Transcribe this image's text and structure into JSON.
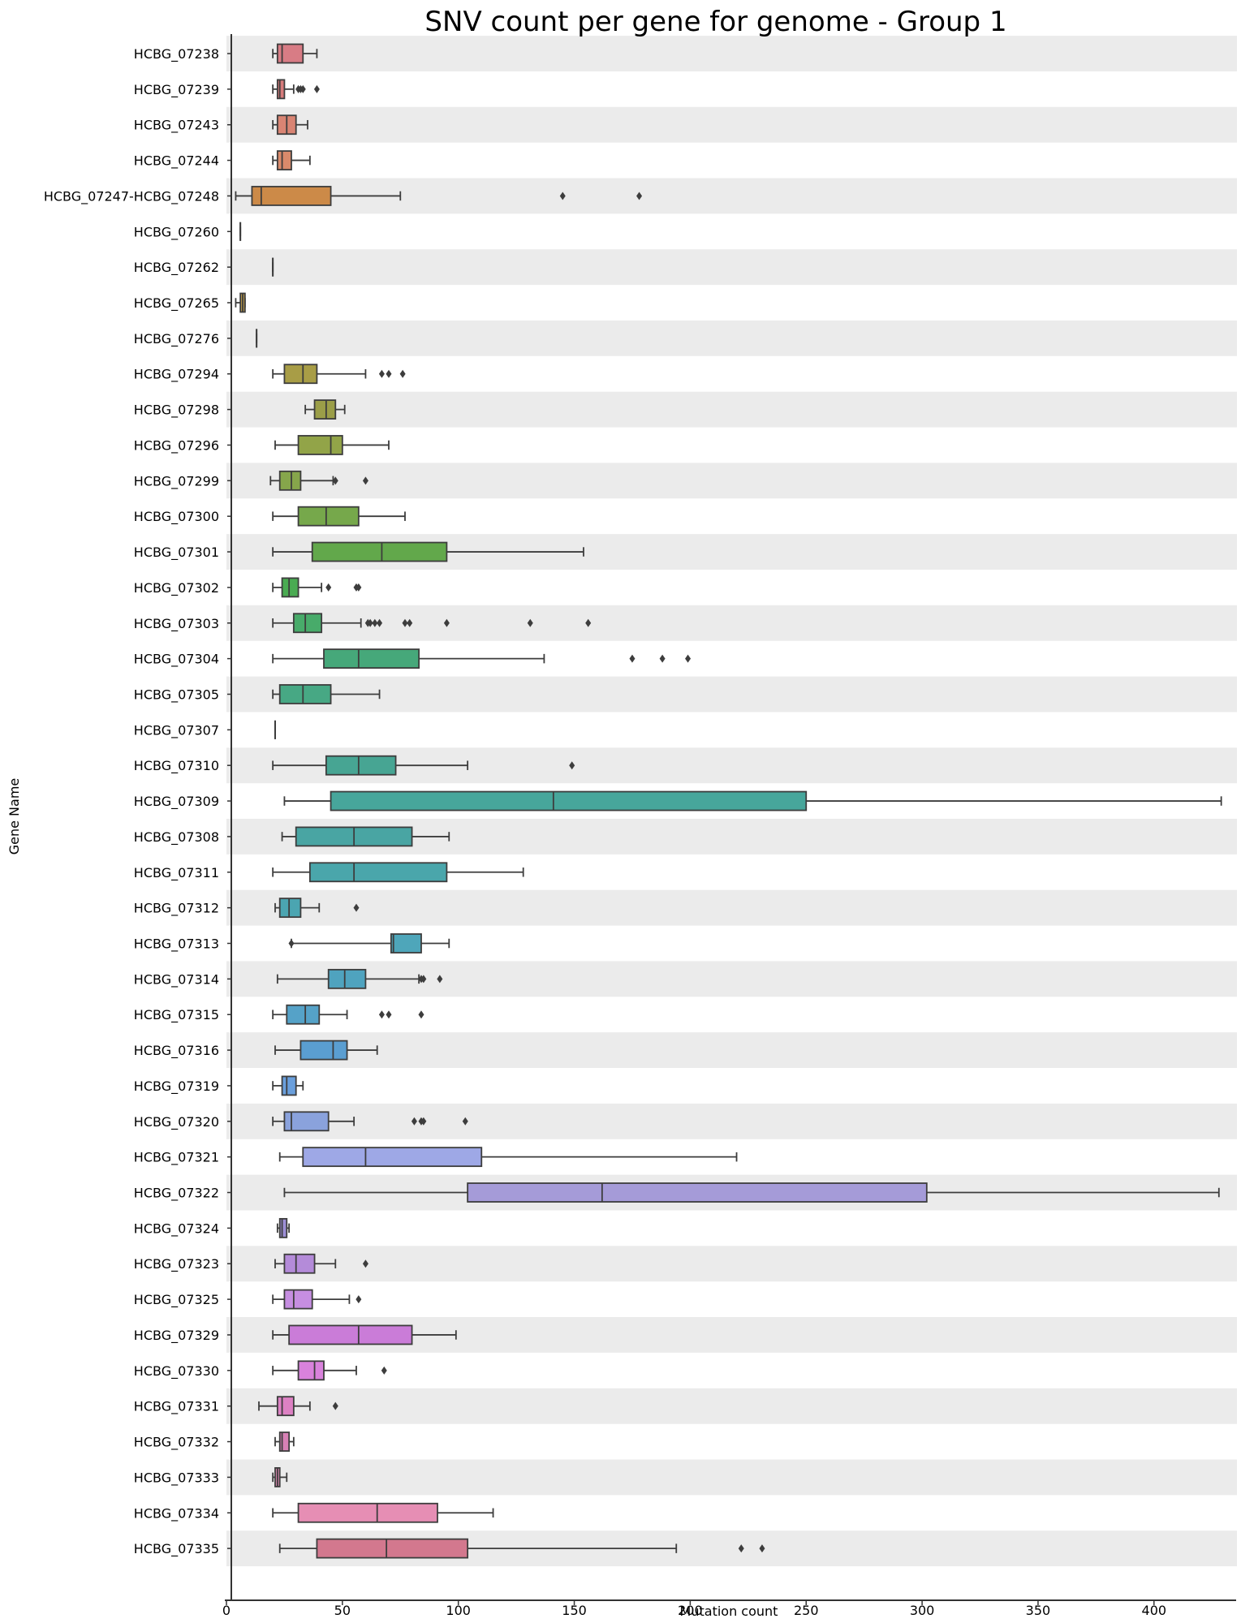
{
  "chart_data": {
    "type": "boxplot",
    "orientation": "horizontal",
    "title": "SNV count per gene for genome - Group 1",
    "xlabel": "Mutation count",
    "ylabel": "Gene Name",
    "xlim": [
      0,
      432
    ],
    "xticks": [
      0,
      50,
      100,
      150,
      200,
      250,
      300,
      350,
      400
    ],
    "grid": false,
    "band_color": "#ebebeb",
    "categories": [
      "HCBG_07238",
      "HCBG_07239",
      "HCBG_07243",
      "HCBG_07244",
      "HCBG_07247-HCBG_07248",
      "HCBG_07260",
      "HCBG_07262",
      "HCBG_07265",
      "HCBG_07276",
      "HCBG_07294",
      "HCBG_07298",
      "HCBG_07296",
      "HCBG_07299",
      "HCBG_07300",
      "HCBG_07301",
      "HCBG_07302",
      "HCBG_07303",
      "HCBG_07304",
      "HCBG_07305",
      "HCBG_07307",
      "HCBG_07310",
      "HCBG_07309",
      "HCBG_07308",
      "HCBG_07311",
      "HCBG_07312",
      "HCBG_07313",
      "HCBG_07314",
      "HCBG_07315",
      "HCBG_07316",
      "HCBG_07319",
      "HCBG_07320",
      "HCBG_07321",
      "HCBG_07322",
      "HCBG_07324",
      "HCBG_07323",
      "HCBG_07325",
      "HCBG_07329",
      "HCBG_07330",
      "HCBG_07331",
      "HCBG_07332",
      "HCBG_07333",
      "HCBG_07334",
      "HCBG_07335"
    ],
    "boxes": [
      {
        "min": 20,
        "q1": 22,
        "median": 24,
        "q3": 33,
        "max": 39,
        "outliers": [],
        "color": "#d87c85"
      },
      {
        "min": 20,
        "q1": 22,
        "median": 23,
        "q3": 25,
        "max": 29,
        "outliers": [
          31,
          32,
          33,
          39
        ],
        "color": "#d87c7c"
      },
      {
        "min": 20,
        "q1": 22,
        "median": 26,
        "q3": 30,
        "max": 35,
        "outliers": [],
        "color": "#d98473"
      },
      {
        "min": 20,
        "q1": 22,
        "median": 24,
        "q3": 28,
        "max": 36,
        "outliers": [],
        "color": "#d98a6b"
      },
      {
        "min": 4,
        "q1": 11,
        "median": 15,
        "q3": 45,
        "max": 75,
        "outliers": [
          145,
          178
        ],
        "color": "#cc8a48"
      },
      {
        "min": 6,
        "q1": 6,
        "median": 6,
        "q3": 6,
        "max": 6,
        "outliers": [],
        "color": "#c79145"
      },
      {
        "min": 20,
        "q1": 20,
        "median": 20,
        "q3": 20,
        "max": 20,
        "outliers": [],
        "color": "#bf9445"
      },
      {
        "min": 4,
        "q1": 6,
        "median": 7,
        "q3": 8,
        "max": 8,
        "outliers": [],
        "color": "#b8974a"
      },
      {
        "min": 13,
        "q1": 13,
        "median": 13,
        "q3": 13,
        "max": 13,
        "outliers": [],
        "color": "#b09a46"
      },
      {
        "min": 20,
        "q1": 25,
        "median": 33,
        "q3": 39,
        "max": 60,
        "outliers": [
          67,
          70,
          76
        ],
        "color": "#a89d46"
      },
      {
        "min": 34,
        "q1": 38,
        "median": 43,
        "q3": 47,
        "max": 51,
        "outliers": [],
        "color": "#9b9e48"
      },
      {
        "min": 21,
        "q1": 31,
        "median": 45,
        "q3": 50,
        "max": 70,
        "outliers": [],
        "color": "#92a448"
      },
      {
        "min": 19,
        "q1": 23,
        "median": 28,
        "q3": 32,
        "max": 46,
        "outliers": [
          47,
          60
        ],
        "color": "#86a64b"
      },
      {
        "min": 20,
        "q1": 31,
        "median": 43,
        "q3": 57,
        "max": 77,
        "outliers": [],
        "color": "#76a84b"
      },
      {
        "min": 20,
        "q1": 37,
        "median": 67,
        "q3": 95,
        "max": 154,
        "outliers": [],
        "color": "#62a84b"
      },
      {
        "min": 20,
        "q1": 24,
        "median": 27,
        "q3": 31,
        "max": 41,
        "outliers": [
          44,
          56,
          57
        ],
        "color": "#4aab52"
      },
      {
        "min": 20,
        "q1": 29,
        "median": 34,
        "q3": 41,
        "max": 58,
        "outliers": [
          61,
          62,
          64,
          66,
          77,
          79,
          95,
          131,
          156
        ],
        "color": "#48ab6a"
      },
      {
        "min": 20,
        "q1": 42,
        "median": 57,
        "q3": 83,
        "max": 137,
        "outliers": [
          175,
          188,
          199
        ],
        "color": "#46a87a"
      },
      {
        "min": 20,
        "q1": 23,
        "median": 33,
        "q3": 45,
        "max": 66,
        "outliers": [],
        "color": "#47a884"
      },
      {
        "min": 21,
        "q1": 21,
        "median": 21,
        "q3": 21,
        "max": 21,
        "outliers": [],
        "color": "#46a68d"
      },
      {
        "min": 20,
        "q1": 43,
        "median": 57,
        "q3": 73,
        "max": 104,
        "outliers": [
          149
        ],
        "color": "#47a593"
      },
      {
        "min": 25,
        "q1": 45,
        "median": 141,
        "q3": 250,
        "max": 429,
        "outliers": [],
        "color": "#47a69b"
      },
      {
        "min": 24,
        "q1": 30,
        "median": 55,
        "q3": 80,
        "max": 96,
        "outliers": [],
        "color": "#49a5a3"
      },
      {
        "min": 20,
        "q1": 36,
        "median": 55,
        "q3": 95,
        "max": 128,
        "outliers": [],
        "color": "#4aa6ab"
      },
      {
        "min": 21,
        "q1": 23,
        "median": 27,
        "q3": 32,
        "max": 40,
        "outliers": [
          56
        ],
        "color": "#4ba5b1"
      },
      {
        "min": 28,
        "q1": 71,
        "median": 72,
        "q3": 84,
        "max": 96,
        "outliers": [
          28
        ],
        "color": "#4ea6ba"
      },
      {
        "min": 22,
        "q1": 44,
        "median": 51,
        "q3": 60,
        "max": 83,
        "outliers": [
          84,
          85,
          92
        ],
        "color": "#4fa3bf"
      },
      {
        "min": 20,
        "q1": 26,
        "median": 34,
        "q3": 40,
        "max": 52,
        "outliers": [
          67,
          70,
          84
        ],
        "color": "#55a2c8"
      },
      {
        "min": 21,
        "q1": 32,
        "median": 46,
        "q3": 52,
        "max": 65,
        "outliers": [],
        "color": "#5a9ed1"
      },
      {
        "min": 20,
        "q1": 24,
        "median": 26,
        "q3": 30,
        "max": 33,
        "outliers": [],
        "color": "#6a9fdc"
      },
      {
        "min": 20,
        "q1": 25,
        "median": 28,
        "q3": 44,
        "max": 55,
        "outliers": [
          81,
          84,
          85,
          103
        ],
        "color": "#8aa2dc"
      },
      {
        "min": 23,
        "q1": 33,
        "median": 60,
        "q3": 110,
        "max": 220,
        "outliers": [],
        "color": "#9ea8e6"
      },
      {
        "min": 25,
        "q1": 104,
        "median": 162,
        "q3": 302,
        "max": 428,
        "outliers": [],
        "color": "#a59bd8"
      },
      {
        "min": 22,
        "q1": 23,
        "median": 24,
        "q3": 26,
        "max": 27,
        "outliers": [],
        "color": "#9d8fd6"
      },
      {
        "min": 21,
        "q1": 25,
        "median": 30,
        "q3": 38,
        "max": 47,
        "outliers": [
          60
        ],
        "color": "#b48bd9"
      },
      {
        "min": 20,
        "q1": 25,
        "median": 29,
        "q3": 37,
        "max": 53,
        "outliers": [
          57
        ],
        "color": "#c68ee1"
      },
      {
        "min": 20,
        "q1": 27,
        "median": 57,
        "q3": 80,
        "max": 99,
        "outliers": [],
        "color": "#ca7cd8"
      },
      {
        "min": 20,
        "q1": 31,
        "median": 38,
        "q3": 42,
        "max": 56,
        "outliers": [
          68
        ],
        "color": "#d982dc"
      },
      {
        "min": 14,
        "q1": 22,
        "median": 24,
        "q3": 29,
        "max": 36,
        "outliers": [
          47
        ],
        "color": "#dd81c3"
      },
      {
        "min": 21,
        "q1": 23,
        "median": 24,
        "q3": 27,
        "max": 29,
        "outliers": [],
        "color": "#d880b5"
      },
      {
        "min": 20,
        "q1": 21,
        "median": 22,
        "q3": 23,
        "max": 26,
        "outliers": [],
        "color": "#d886ad"
      },
      {
        "min": 20,
        "q1": 31,
        "median": 65,
        "q3": 91,
        "max": 115,
        "outliers": [],
        "color": "#e68eb4"
      },
      {
        "min": 23,
        "q1": 39,
        "median": 69,
        "q3": 104,
        "max": 194,
        "outliers": [
          222,
          231
        ],
        "color": "#d3788e"
      }
    ]
  }
}
